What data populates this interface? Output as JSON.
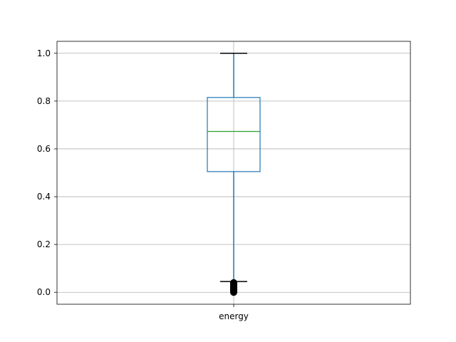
{
  "chart_data": {
    "type": "box",
    "title": "",
    "xlabel": "",
    "ylabel": "",
    "categories": [
      "energy"
    ],
    "boxes": [
      {
        "name": "energy",
        "whisker_low": 0.045,
        "q1": 0.505,
        "median": 0.673,
        "q3": 0.815,
        "whisker_high": 1.0,
        "outliers": [
          0.0,
          0.003,
          0.006,
          0.009,
          0.012,
          0.015,
          0.018,
          0.021,
          0.024,
          0.027,
          0.03,
          0.033,
          0.036,
          0.04
        ]
      }
    ],
    "ylim": [
      -0.05,
      1.05
    ],
    "yticks": [
      0.0,
      0.2,
      0.4,
      0.6,
      0.8,
      1.0
    ],
    "ytick_labels": [
      "0.0",
      "0.2",
      "0.4",
      "0.6",
      "0.8",
      "1.0"
    ],
    "grid": true,
    "colors": {
      "box": "#1f77b4",
      "median": "#2ca02c",
      "whisker_cap": "#000000",
      "outlier": "#000000",
      "grid": "#b0b0b0"
    }
  }
}
